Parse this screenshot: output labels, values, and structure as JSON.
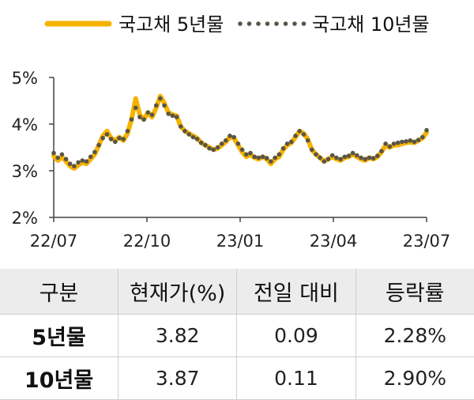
{
  "legend": [
    {
      "name": "국고채 5년물",
      "color": "#f5b300",
      "style": "solid"
    },
    {
      "name": "국고채 10년물",
      "color": "#5a5448",
      "style": "dotted"
    }
  ],
  "chart_data": {
    "type": "line",
    "title": "",
    "xlabel": "",
    "ylabel": "",
    "yticks": [
      "2%",
      "3%",
      "4%",
      "5%"
    ],
    "xticks": [
      "22/07",
      "22/10",
      "23/01",
      "23/04",
      "23/07"
    ],
    "ylim": [
      2,
      5
    ],
    "series": [
      {
        "name": "국고채 5년물",
        "color": "#f5b300",
        "values": [
          3.32,
          3.22,
          3.3,
          3.2,
          3.1,
          3.05,
          3.12,
          3.18,
          3.15,
          3.25,
          3.35,
          3.55,
          3.75,
          3.85,
          3.7,
          3.65,
          3.72,
          3.65,
          3.8,
          4.1,
          4.55,
          4.2,
          4.1,
          4.25,
          4.15,
          4.35,
          4.6,
          4.45,
          4.25,
          4.2,
          4.18,
          3.95,
          3.85,
          3.8,
          3.75,
          3.7,
          3.6,
          3.55,
          3.5,
          3.45,
          3.48,
          3.55,
          3.62,
          3.72,
          3.7,
          3.55,
          3.4,
          3.3,
          3.35,
          3.28,
          3.25,
          3.3,
          3.25,
          3.15,
          3.25,
          3.3,
          3.45,
          3.55,
          3.6,
          3.72,
          3.85,
          3.8,
          3.68,
          3.45,
          3.35,
          3.28,
          3.2,
          3.25,
          3.3,
          3.25,
          3.22,
          3.28,
          3.3,
          3.35,
          3.3,
          3.25,
          3.22,
          3.28,
          3.25,
          3.3,
          3.4,
          3.55,
          3.5,
          3.55,
          3.55,
          3.58,
          3.6,
          3.62,
          3.6,
          3.65,
          3.7,
          3.82
        ]
      },
      {
        "name": "국고채 10년물",
        "color": "#5a5448",
        "values": [
          3.38,
          3.28,
          3.35,
          3.25,
          3.15,
          3.1,
          3.18,
          3.22,
          3.2,
          3.3,
          3.4,
          3.55,
          3.7,
          3.78,
          3.68,
          3.62,
          3.7,
          3.68,
          3.85,
          4.1,
          4.35,
          4.15,
          4.1,
          4.25,
          4.2,
          4.4,
          4.55,
          4.4,
          4.22,
          4.18,
          4.15,
          3.95,
          3.85,
          3.78,
          3.72,
          3.68,
          3.6,
          3.55,
          3.48,
          3.45,
          3.5,
          3.58,
          3.65,
          3.75,
          3.72,
          3.58,
          3.45,
          3.35,
          3.38,
          3.3,
          3.28,
          3.3,
          3.27,
          3.2,
          3.28,
          3.35,
          3.48,
          3.58,
          3.62,
          3.75,
          3.85,
          3.78,
          3.65,
          3.45,
          3.35,
          3.28,
          3.2,
          3.25,
          3.33,
          3.28,
          3.25,
          3.3,
          3.32,
          3.38,
          3.33,
          3.28,
          3.25,
          3.28,
          3.27,
          3.32,
          3.42,
          3.58,
          3.52,
          3.58,
          3.6,
          3.62,
          3.63,
          3.65,
          3.62,
          3.66,
          3.72,
          3.87
        ]
      }
    ],
    "grid": false,
    "legend_position": "top"
  },
  "table": {
    "headers": [
      "구분",
      "현재가(%)",
      "전일 대비",
      "등락률"
    ],
    "rows": [
      [
        "5년물",
        "3.82",
        "0.09",
        "2.28%"
      ],
      [
        "10년물",
        "3.87",
        "0.11",
        "2.90%"
      ]
    ]
  }
}
